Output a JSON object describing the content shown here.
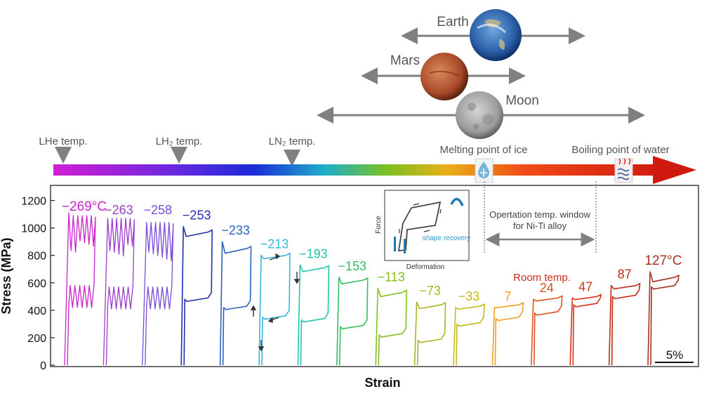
{
  "timeline": {
    "markers": [
      {
        "label": "LHe temp."
      },
      {
        "label": "LH₂ temp."
      },
      {
        "label": "LN₂ temp."
      },
      {
        "label": "Melting point of ice"
      },
      {
        "label": "Boiling point of water"
      }
    ],
    "bodies": [
      {
        "name": "Earth",
        "color": "#2f6fb8"
      },
      {
        "name": "Mars",
        "color": "#b5532f"
      },
      {
        "name": "Moon",
        "color": "#9a9a9a"
      }
    ]
  },
  "chart_data": {
    "type": "line",
    "title": "",
    "xlabel": "Strain",
    "ylabel": "Stress (MPa)",
    "ylim": [
      0,
      1300
    ],
    "yticks": [
      0,
      200,
      400,
      600,
      800,
      1000,
      1200
    ],
    "scale_bar": "5%",
    "temperature_labels": [
      "−269°C",
      "−263",
      "−258",
      "−253",
      "−233",
      "−213",
      "−193",
      "−153",
      "−113",
      "−73",
      "−33",
      "7",
      "24",
      "47",
      "87",
      "127°C"
    ],
    "series": [
      {
        "name": "−269°C",
        "color": "#cc22cc",
        "upper": 1050,
        "lower": 440,
        "peak": 1110,
        "serrated": true
      },
      {
        "name": "−263",
        "color": "#9a3ccc",
        "upper": 1030,
        "lower": 430,
        "peak": 1070,
        "serrated": true
      },
      {
        "name": "−258",
        "color": "#7a4cd8",
        "upper": 1000,
        "lower": 430,
        "peak": 1040,
        "serrated": true
      },
      {
        "name": "−253",
        "color": "#1f2fb0",
        "upper": 950,
        "lower": 480,
        "peak": 1010,
        "serrated": false
      },
      {
        "name": "−233",
        "color": "#2a62c0",
        "upper": 830,
        "lower": 420,
        "peak": 900,
        "serrated": false
      },
      {
        "name": "−213",
        "color": "#38b4e0",
        "upper": 780,
        "lower": 350,
        "peak": 800,
        "serrated": false
      },
      {
        "name": "−193",
        "color": "#1fc8a8",
        "upper": 690,
        "lower": 330,
        "peak": 730,
        "serrated": false
      },
      {
        "name": "−153",
        "color": "#30c060",
        "upper": 600,
        "lower": 280,
        "peak": 640,
        "serrated": false
      },
      {
        "name": "−113",
        "color": "#84c020",
        "upper": 510,
        "lower": 220,
        "peak": 560,
        "serrated": false
      },
      {
        "name": "−73",
        "color": "#a8b420",
        "upper": 420,
        "lower": 180,
        "peak": 460,
        "serrated": false
      },
      {
        "name": "−33",
        "color": "#c8b818",
        "upper": 410,
        "lower": 300,
        "peak": 420,
        "serrated": false
      },
      {
        "name": "7",
        "color": "#f0a020",
        "upper": 420,
        "lower": 340,
        "peak": 420,
        "serrated": false
      },
      {
        "name": "24",
        "color": "#e05020",
        "upper": 470,
        "lower": 380,
        "peak": 480,
        "serrated": false
      },
      {
        "name": "47",
        "color": "#d83018",
        "upper": 480,
        "lower": 440,
        "peak": 490,
        "serrated": false
      },
      {
        "name": "87",
        "color": "#c02818",
        "upper": 560,
        "lower": 500,
        "peak": 580,
        "serrated": false
      },
      {
        "name": "127°C",
        "color": "#a83020",
        "upper": 620,
        "lower": 570,
        "peak": 680,
        "serrated": false
      }
    ]
  },
  "annotations": {
    "room_temp": "Room temp.",
    "window_line1": "Opertation temp. window",
    "window_line2": "for Ni-Ti alloy"
  },
  "inset": {
    "xlabel": "Deformation",
    "ylabel": "Force",
    "note": "shape recovery"
  }
}
